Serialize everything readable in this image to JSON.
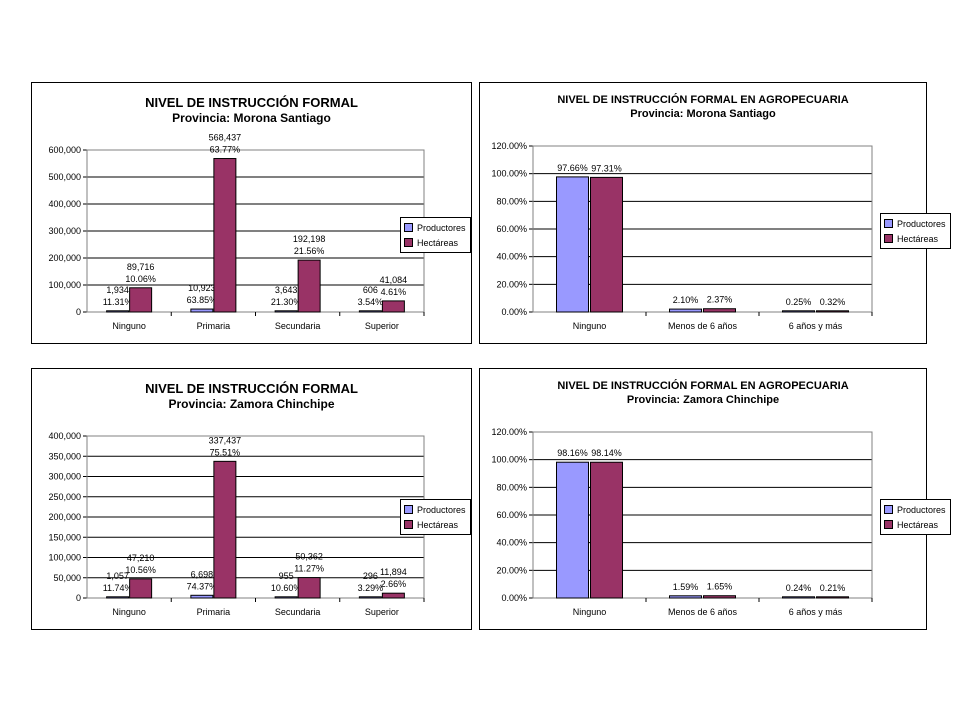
{
  "colors": {
    "productores": "#9999ff",
    "hectareas": "#993366",
    "plot_bg": "#ffffff",
    "grid": "#000000"
  },
  "charts": [
    {
      "title": "NIVEL DE INSTRUCCIÓN FORMAL",
      "subtitle": "Provincia: Morona Santiago"
    },
    {
      "title": "NIVEL DE INSTRUCCIÓN FORMAL EN AGROPECUARIA",
      "subtitle": "Provincia: Morona Santiago"
    },
    {
      "title": "NIVEL DE INSTRUCCIÓN FORMAL",
      "subtitle": "Provincia: Zamora Chinchipe"
    },
    {
      "title": "NIVEL DE INSTRUCCIÓN FORMAL EN AGROPECUARIA",
      "subtitle": "Provincia: Zamora Chinchipe"
    }
  ],
  "legend": {
    "productores": "Productores",
    "hectareas": "Hectáreas"
  },
  "chart_data": [
    {
      "type": "bar",
      "title": "NIVEL DE INSTRUCCIÓN FORMAL",
      "subtitle": "Provincia: Morona Santiago",
      "categories": [
        "Ninguno",
        "Primaria",
        "Secundaria",
        "Superior"
      ],
      "yticks": [
        "0",
        "100,000",
        "200,000",
        "300,000",
        "400,000",
        "500,000",
        "600,000"
      ],
      "ylim": [
        0,
        600000
      ],
      "series": [
        {
          "name": "Productores",
          "values": [
            1934,
            10923,
            3643,
            606
          ],
          "labels": [
            "1,934",
            "10,923",
            "3,643",
            "606"
          ],
          "pct": [
            "11.31%",
            "63.85%",
            "21.30%",
            "3.54%"
          ]
        },
        {
          "name": "Hectáreas",
          "values": [
            89716,
            568437,
            192198,
            41084
          ],
          "labels": [
            "89,716",
            "568,437",
            "192,198",
            "41,084"
          ],
          "pct": [
            "10.06%",
            "63.77%",
            "21.56%",
            "4.61%"
          ]
        }
      ],
      "legend": "right",
      "grid": true
    },
    {
      "type": "bar",
      "title": "NIVEL DE INSTRUCCIÓN FORMAL EN AGROPECUARIA",
      "subtitle": "Provincia: Morona Santiago",
      "categories": [
        "Ninguno",
        "Menos de 6 años",
        "6 años y más"
      ],
      "yticks": [
        "0.00%",
        "20.00%",
        "40.00%",
        "60.00%",
        "80.00%",
        "100.00%",
        "120.00%"
      ],
      "ylim": [
        0,
        120
      ],
      "series": [
        {
          "name": "Productores",
          "values": [
            97.66,
            2.1,
            0.25
          ],
          "labels": [
            "97.66%",
            "2.10%",
            "0.25%"
          ]
        },
        {
          "name": "Hectáreas",
          "values": [
            97.31,
            2.37,
            0.32
          ],
          "labels": [
            "97.31%",
            "2.37%",
            "0.32%"
          ]
        }
      ],
      "legend": "right",
      "grid": true
    },
    {
      "type": "bar",
      "title": "NIVEL DE INSTRUCCIÓN FORMAL",
      "subtitle": "Provincia: Zamora Chinchipe",
      "categories": [
        "Ninguno",
        "Primaria",
        "Secundaria",
        "Superior"
      ],
      "yticks": [
        "0",
        "50,000",
        "100,000",
        "150,000",
        "200,000",
        "250,000",
        "300,000",
        "350,000",
        "400,000"
      ],
      "ylim": [
        0,
        400000
      ],
      "series": [
        {
          "name": "Productores",
          "values": [
            1057,
            6698,
            955,
            296
          ],
          "labels": [
            "1,057",
            "6,698",
            "955",
            "296"
          ],
          "pct": [
            "11.74%",
            "74.37%",
            "10.60%",
            "3.29%"
          ]
        },
        {
          "name": "Hectáreas",
          "values": [
            47210,
            337437,
            50362,
            11894
          ],
          "labels": [
            "47,210",
            "337,437",
            "50,362",
            "11,894"
          ],
          "pct": [
            "10.56%",
            "75.51%",
            "11.27%",
            "2.66%"
          ]
        }
      ],
      "legend": "right",
      "grid": true
    },
    {
      "type": "bar",
      "title": "NIVEL DE INSTRUCCIÓN FORMAL EN AGROPECUARIA",
      "subtitle": "Provincia: Zamora Chinchipe",
      "categories": [
        "Ninguno",
        "Menos de 6 años",
        "6 años y más"
      ],
      "yticks": [
        "0.00%",
        "20.00%",
        "40.00%",
        "60.00%",
        "80.00%",
        "100.00%",
        "120.00%"
      ],
      "ylim": [
        0,
        120
      ],
      "series": [
        {
          "name": "Productores",
          "values": [
            98.16,
            1.59,
            0.24
          ],
          "labels": [
            "98.16%",
            "1.59%",
            "0.24%"
          ]
        },
        {
          "name": "Hectáreas",
          "values": [
            98.14,
            1.65,
            0.21
          ],
          "labels": [
            "98.14%",
            "1.65%",
            "0.21%"
          ]
        }
      ],
      "legend": "right",
      "grid": true
    }
  ]
}
